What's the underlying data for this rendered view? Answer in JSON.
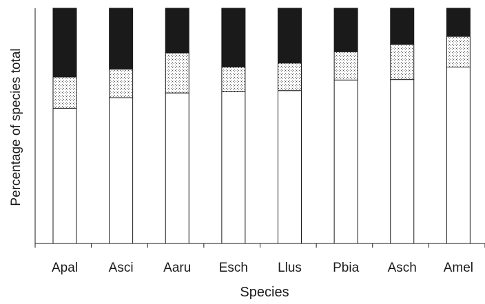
{
  "chart_data": {
    "type": "bar",
    "stacked": true,
    "xlabel": "Species",
    "ylabel": "Percentage of species total",
    "ylim": [
      0,
      100
    ],
    "categories": [
      "Apal",
      "Asci",
      "Aaru",
      "Esch",
      "Llus",
      "Pbia",
      "Asch",
      "Amel"
    ],
    "series": [
      {
        "pattern": "white",
        "color": "#ffffff",
        "values": [
          57.5,
          62.0,
          64.0,
          64.5,
          65.0,
          69.5,
          69.7,
          75.0
        ]
      },
      {
        "pattern": "stippled",
        "color": "#d8d8d8",
        "values": [
          13.3,
          12.1,
          17.0,
          10.5,
          11.7,
          12.0,
          15.0,
          13.0
        ]
      },
      {
        "pattern": "black",
        "color": "#1a1a1a",
        "values": [
          29.2,
          25.9,
          19.0,
          25.0,
          23.3,
          18.5,
          15.3,
          12.0
        ]
      }
    ],
    "grid": false,
    "legend": "none"
  }
}
